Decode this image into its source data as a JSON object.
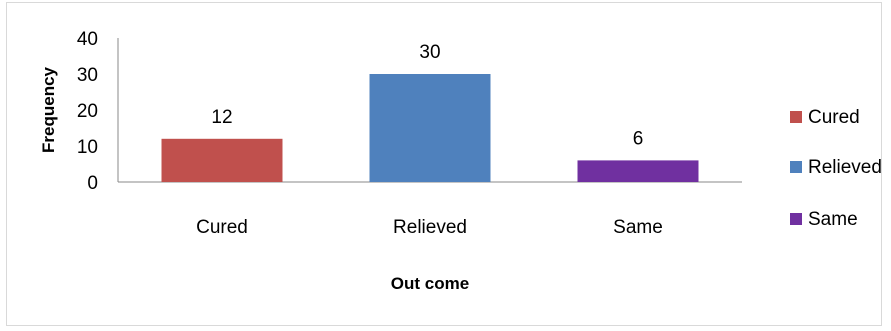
{
  "chart_data": {
    "type": "bar",
    "title": "",
    "xlabel": "Out come",
    "ylabel": "Frequency",
    "categories": [
      "Cured",
      "Relieved",
      "Same"
    ],
    "values": [
      12,
      30,
      6
    ],
    "colors": [
      "#c0504d",
      "#4f81bd",
      "#7030a0"
    ],
    "ylim": [
      0,
      40
    ],
    "yticks": [
      "0",
      "10",
      "20",
      "30",
      "40"
    ],
    "data_labels": [
      "12",
      "30",
      "6"
    ],
    "grid": false,
    "legend": {
      "position": "right",
      "entries": [
        "Cured",
        "Relieved",
        "Same"
      ]
    }
  }
}
